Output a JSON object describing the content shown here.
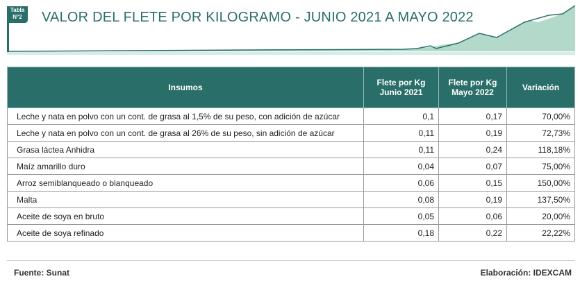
{
  "badge": {
    "line1": "Tabla",
    "line2": "N°2"
  },
  "title": "VALOR  DEL FLETE POR KILOGRAMO - JUNIO 2021 A  MAYO 2022",
  "table": {
    "headers": [
      "Insumos",
      "Flete por Kg\nJunio 2021",
      "Flete por Kg\nMayo 2022",
      "Variación"
    ],
    "rows": [
      [
        "Leche y nata en polvo con un cont. de grasa al 1,5% de su peso, con adición de azúcar",
        "0,1",
        "0,17",
        "70,00%"
      ],
      [
        "Leche y nata en polvo con un cont. de grasa al 26% de su peso, sin adición de azúcar",
        "0,11",
        "0,19",
        "72,73%"
      ],
      [
        "Grasa láctea Anhidra",
        "0,11",
        "0,24",
        "118,18%"
      ],
      [
        "Maíz amarillo duro",
        "0,04",
        "0,07",
        "75,00%"
      ],
      [
        "Arroz semiblanqueado o blanqueado",
        "0,06",
        "0,15",
        "150,00%"
      ],
      [
        "Malta",
        "0,08",
        "0,19",
        "137,50%"
      ],
      [
        "Aceite de soya en bruto",
        "0,05",
        "0,06",
        "20,00%"
      ],
      [
        "Aceite de soya refinado",
        "0,18",
        "0,22",
        "22,22%"
      ]
    ]
  },
  "footer": {
    "source": "Fuente:  Sunat",
    "credit": "Elaboración: IDEXCAM"
  },
  "colors": {
    "accent": "#2a6e69"
  }
}
